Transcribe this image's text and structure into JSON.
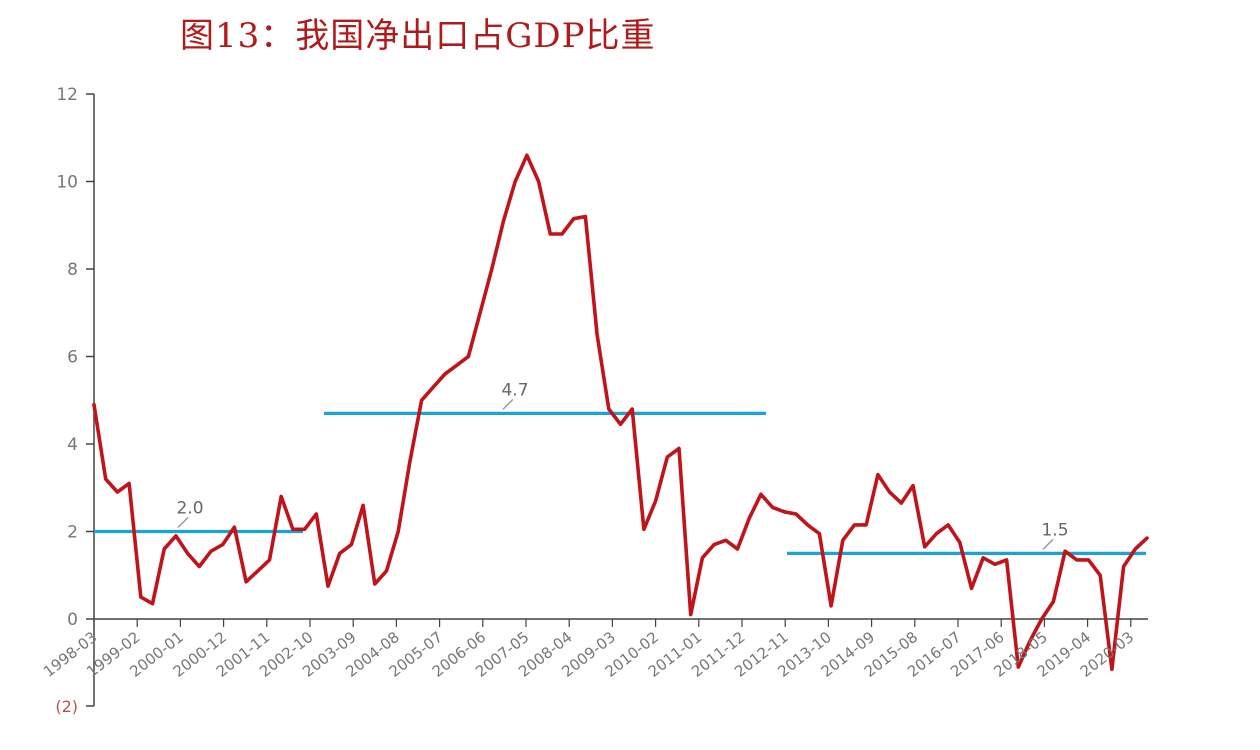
{
  "title": "图13：我国净出口占GDP比重",
  "colors": {
    "series": "#c0141a",
    "reference": "#1aa3d8",
    "axis": "#444444",
    "tick_text": "#777777",
    "title": "#b01a1a"
  },
  "chart_data": {
    "type": "line",
    "title": "图13：我国净出口占GDP比重",
    "xlabel": "",
    "ylabel": "",
    "ylim": [
      0,
      12
    ],
    "yticks": [
      0,
      2,
      4,
      6,
      8,
      10,
      12
    ],
    "x_tick_labels": [
      "1998-03",
      "1999-02",
      "2000-01",
      "2000-12",
      "2001-11",
      "2002-10",
      "2003-09",
      "2004-08",
      "2005-07",
      "2006-06",
      "2007-05",
      "2008-04",
      "2009-03",
      "2010-02",
      "2011-01",
      "2011-12",
      "2012-11",
      "2013-10",
      "2014-09",
      "2015-08",
      "2016-07",
      "2017-06",
      "2018-05",
      "2019-04",
      "2020-03"
    ],
    "below_axis_label": "(2)",
    "grid": false,
    "series": [
      {
        "values": [
          4.9,
          3.2,
          2.9,
          3.1,
          0.5,
          0.35,
          1.6,
          1.9,
          1.5,
          1.2,
          1.55,
          1.7,
          2.1,
          0.85,
          1.1,
          1.35,
          2.8,
          2.05,
          2.05,
          2.4,
          0.75,
          1.5,
          1.7,
          2.6,
          0.8,
          1.1,
          2.0,
          3.6,
          5.0,
          5.3,
          5.6,
          5.8,
          6.0,
          7.0,
          8.0,
          9.1,
          10.0,
          10.6,
          10.0,
          8.8,
          8.8,
          9.15,
          9.2,
          6.5,
          4.8,
          4.45,
          4.8,
          2.05,
          2.7,
          3.7,
          3.9,
          0.1,
          1.4,
          1.7,
          1.8,
          1.6,
          2.3,
          2.85,
          2.55,
          2.45,
          2.4,
          2.15,
          1.95,
          0.3,
          1.8,
          2.15,
          2.15,
          3.3,
          2.9,
          2.65,
          3.05,
          1.65,
          1.95,
          2.15,
          1.75,
          0.7,
          1.4,
          1.25,
          1.35,
          -1.1,
          -0.5,
          0.0,
          0.4,
          1.55,
          1.35,
          1.35,
          1.0,
          -1.15,
          1.2,
          1.6,
          1.85
        ]
      }
    ],
    "reference_lines": [
      {
        "label": "2.0",
        "value": 2.0,
        "from_index": 0,
        "to_index": 19
      },
      {
        "label": "4.7",
        "value": 4.7,
        "from_index": 21,
        "to_index": 61
      },
      {
        "label": "1.5",
        "value": 1.5,
        "from_index": 63,
        "to_index": 97
      }
    ]
  }
}
